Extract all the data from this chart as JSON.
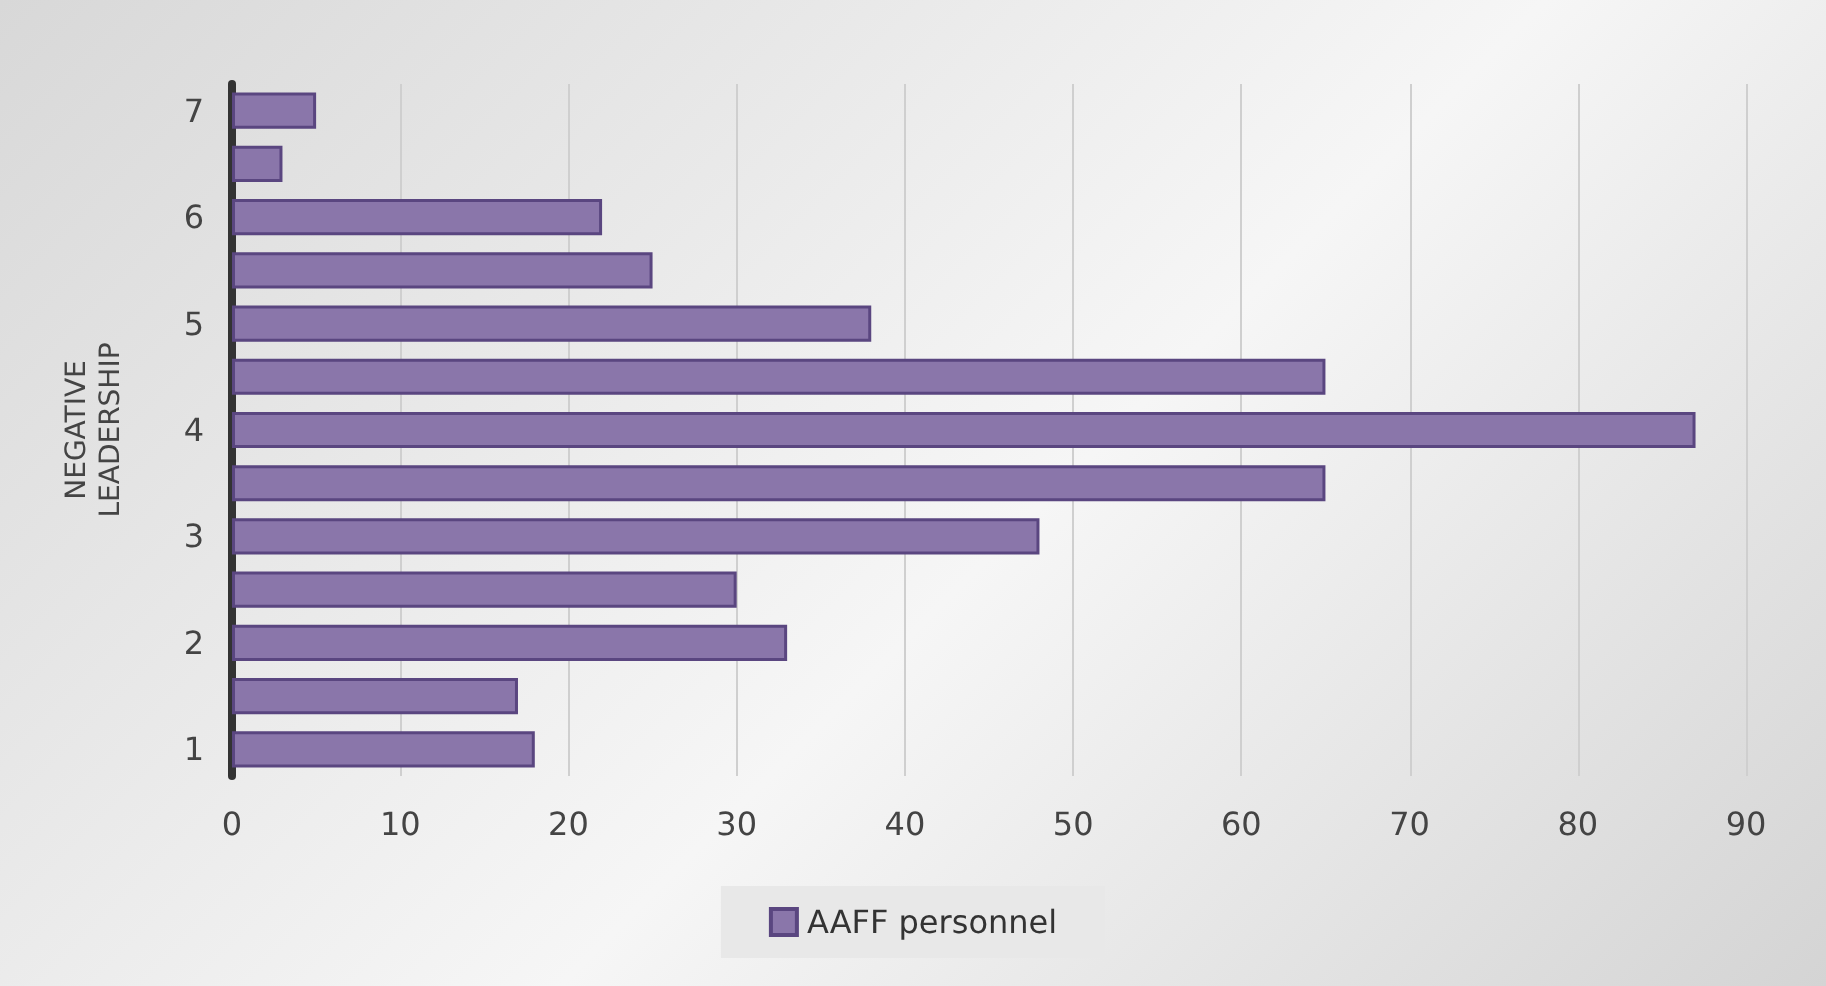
{
  "chart_data": {
    "type": "bar",
    "orientation": "horizontal",
    "ylabel": "NEGATIVE\nLEADERSHIP",
    "categories": [
      "7",
      null,
      "6",
      null,
      "5",
      null,
      "4",
      null,
      "3",
      null,
      "2",
      null,
      "1"
    ],
    "series": [
      {
        "name": "AAFF personnel",
        "color": "#8a76aa",
        "values": [
          5,
          3,
          22,
          25,
          38,
          65,
          87,
          65,
          48,
          30,
          33,
          17,
          18
        ]
      }
    ],
    "xlim": [
      0,
      90
    ],
    "xticks": [
      0,
      10,
      20,
      30,
      40,
      50,
      60,
      70,
      80,
      90
    ],
    "grid": "x",
    "legend": "bottom"
  }
}
